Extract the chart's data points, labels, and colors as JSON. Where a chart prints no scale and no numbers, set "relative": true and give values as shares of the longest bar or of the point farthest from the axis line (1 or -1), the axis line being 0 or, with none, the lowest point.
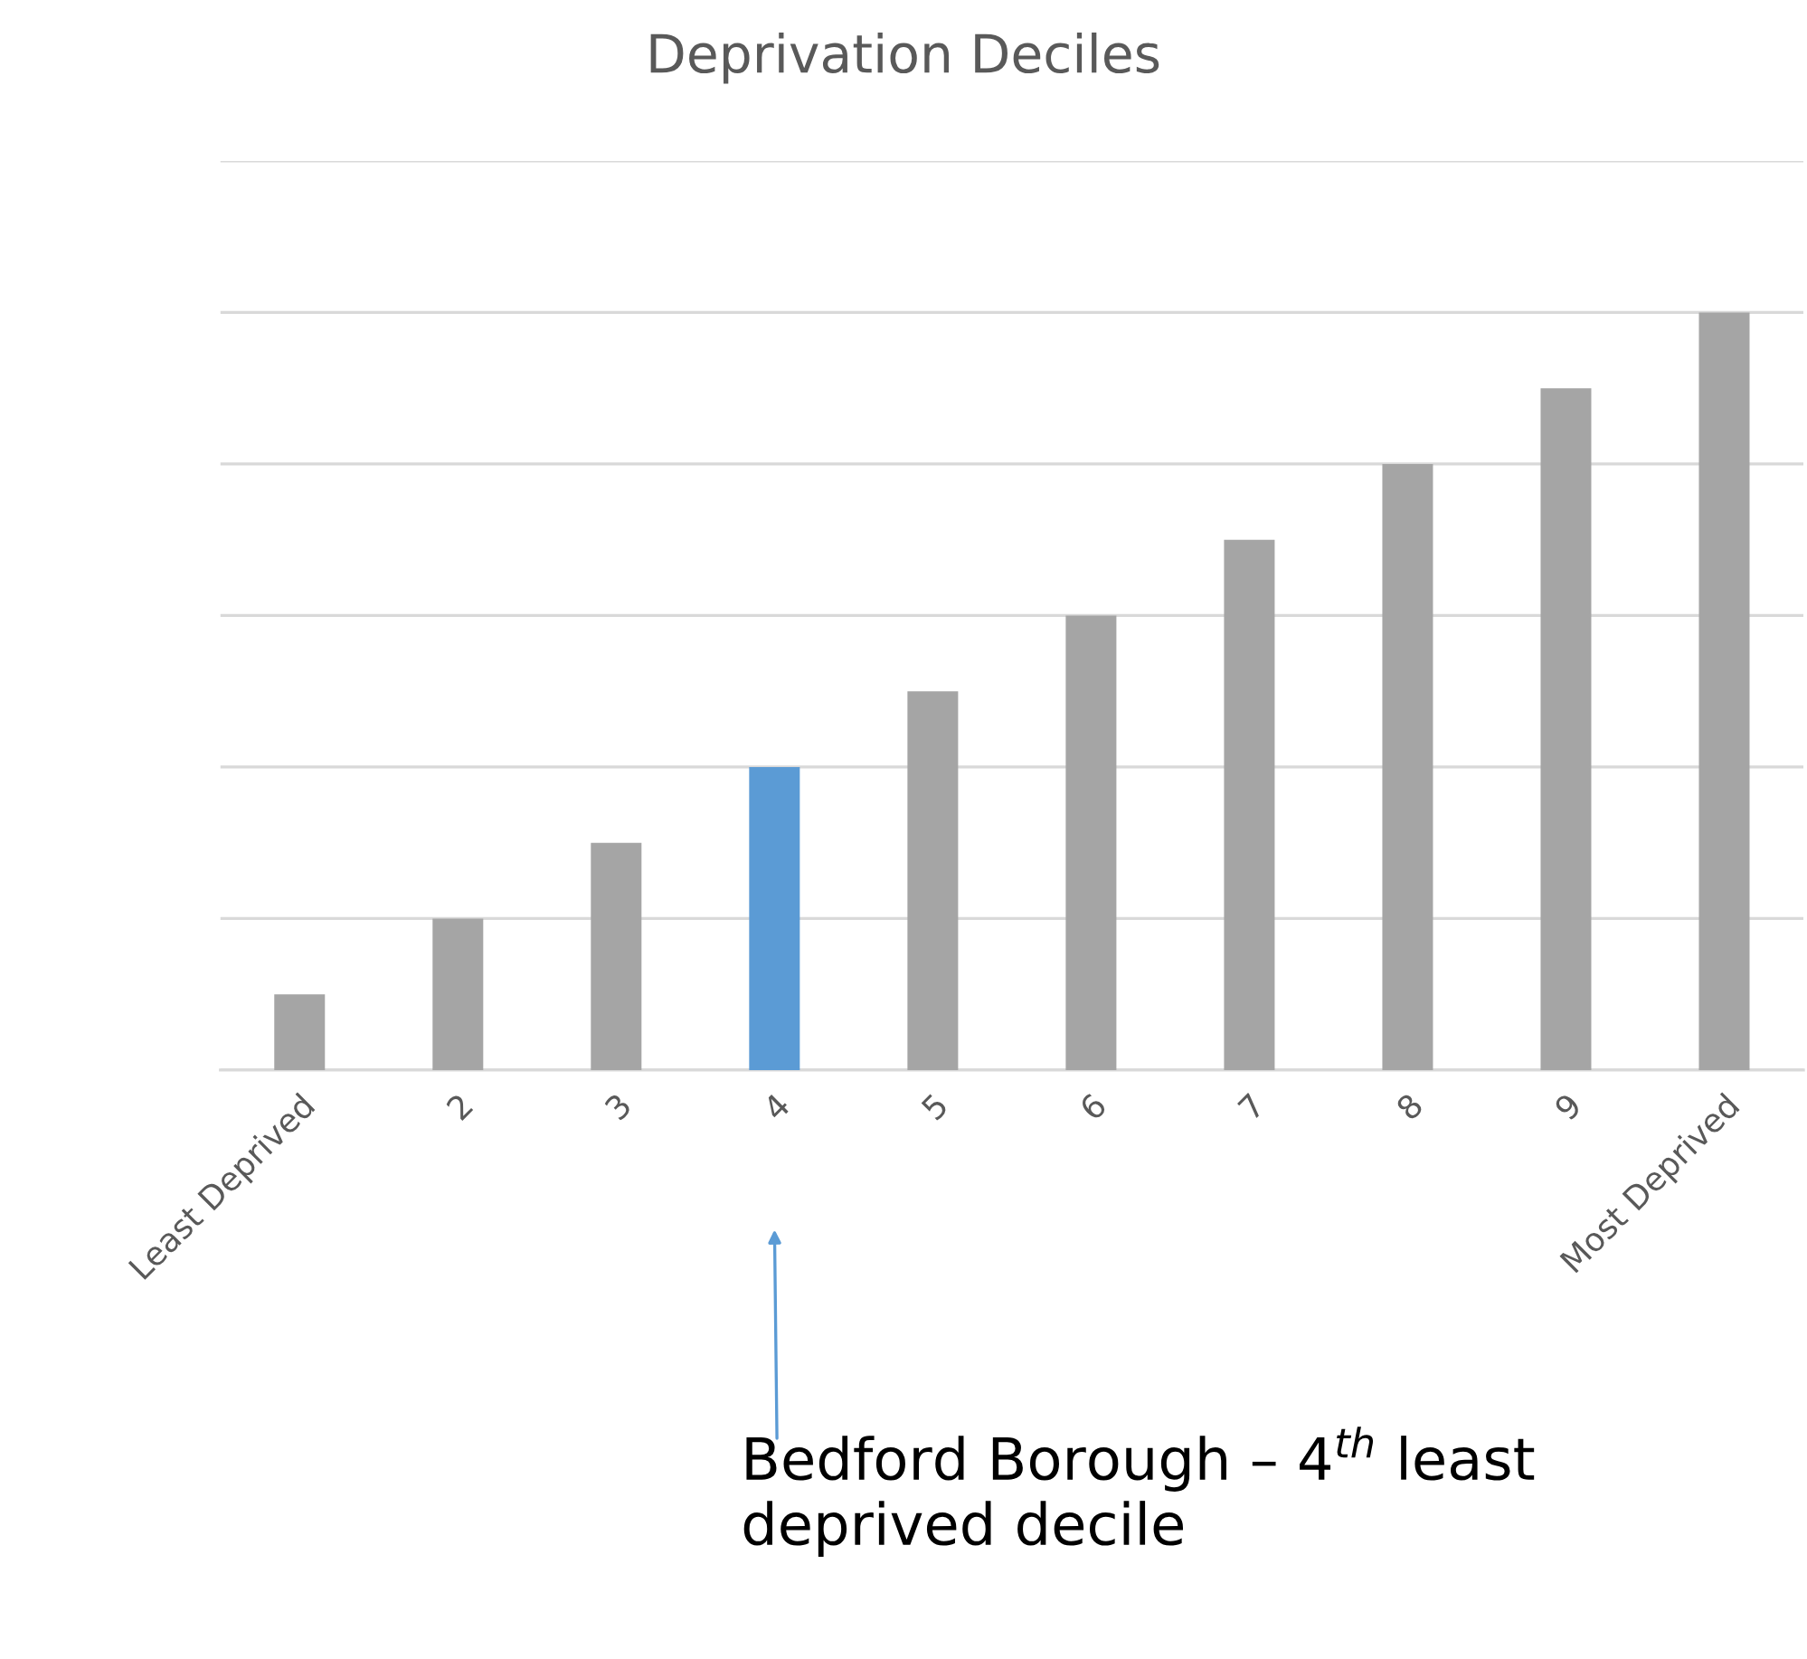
{
  "chart_data": {
    "type": "bar",
    "title": "Deprivation Deciles",
    "relative": true,
    "categories": [
      "Least Deprived",
      "2",
      "3",
      "4",
      "5",
      "6",
      "7",
      "8",
      "9",
      "Most Deprived"
    ],
    "values": [
      0.1,
      0.2,
      0.3,
      0.4,
      0.5,
      0.6,
      0.7,
      0.8,
      0.9,
      1.0
    ],
    "colors": [
      "#a5a5a5",
      "#a5a5a5",
      "#a5a5a5",
      "#5b9bd5",
      "#a5a5a5",
      "#a5a5a5",
      "#a5a5a5",
      "#a5a5a5",
      "#a5a5a5",
      "#a5a5a5"
    ],
    "grid": "y",
    "annotations": [
      "Bedford Borough – 4$^{th}$ least deprived decile"
    ]
  }
}
